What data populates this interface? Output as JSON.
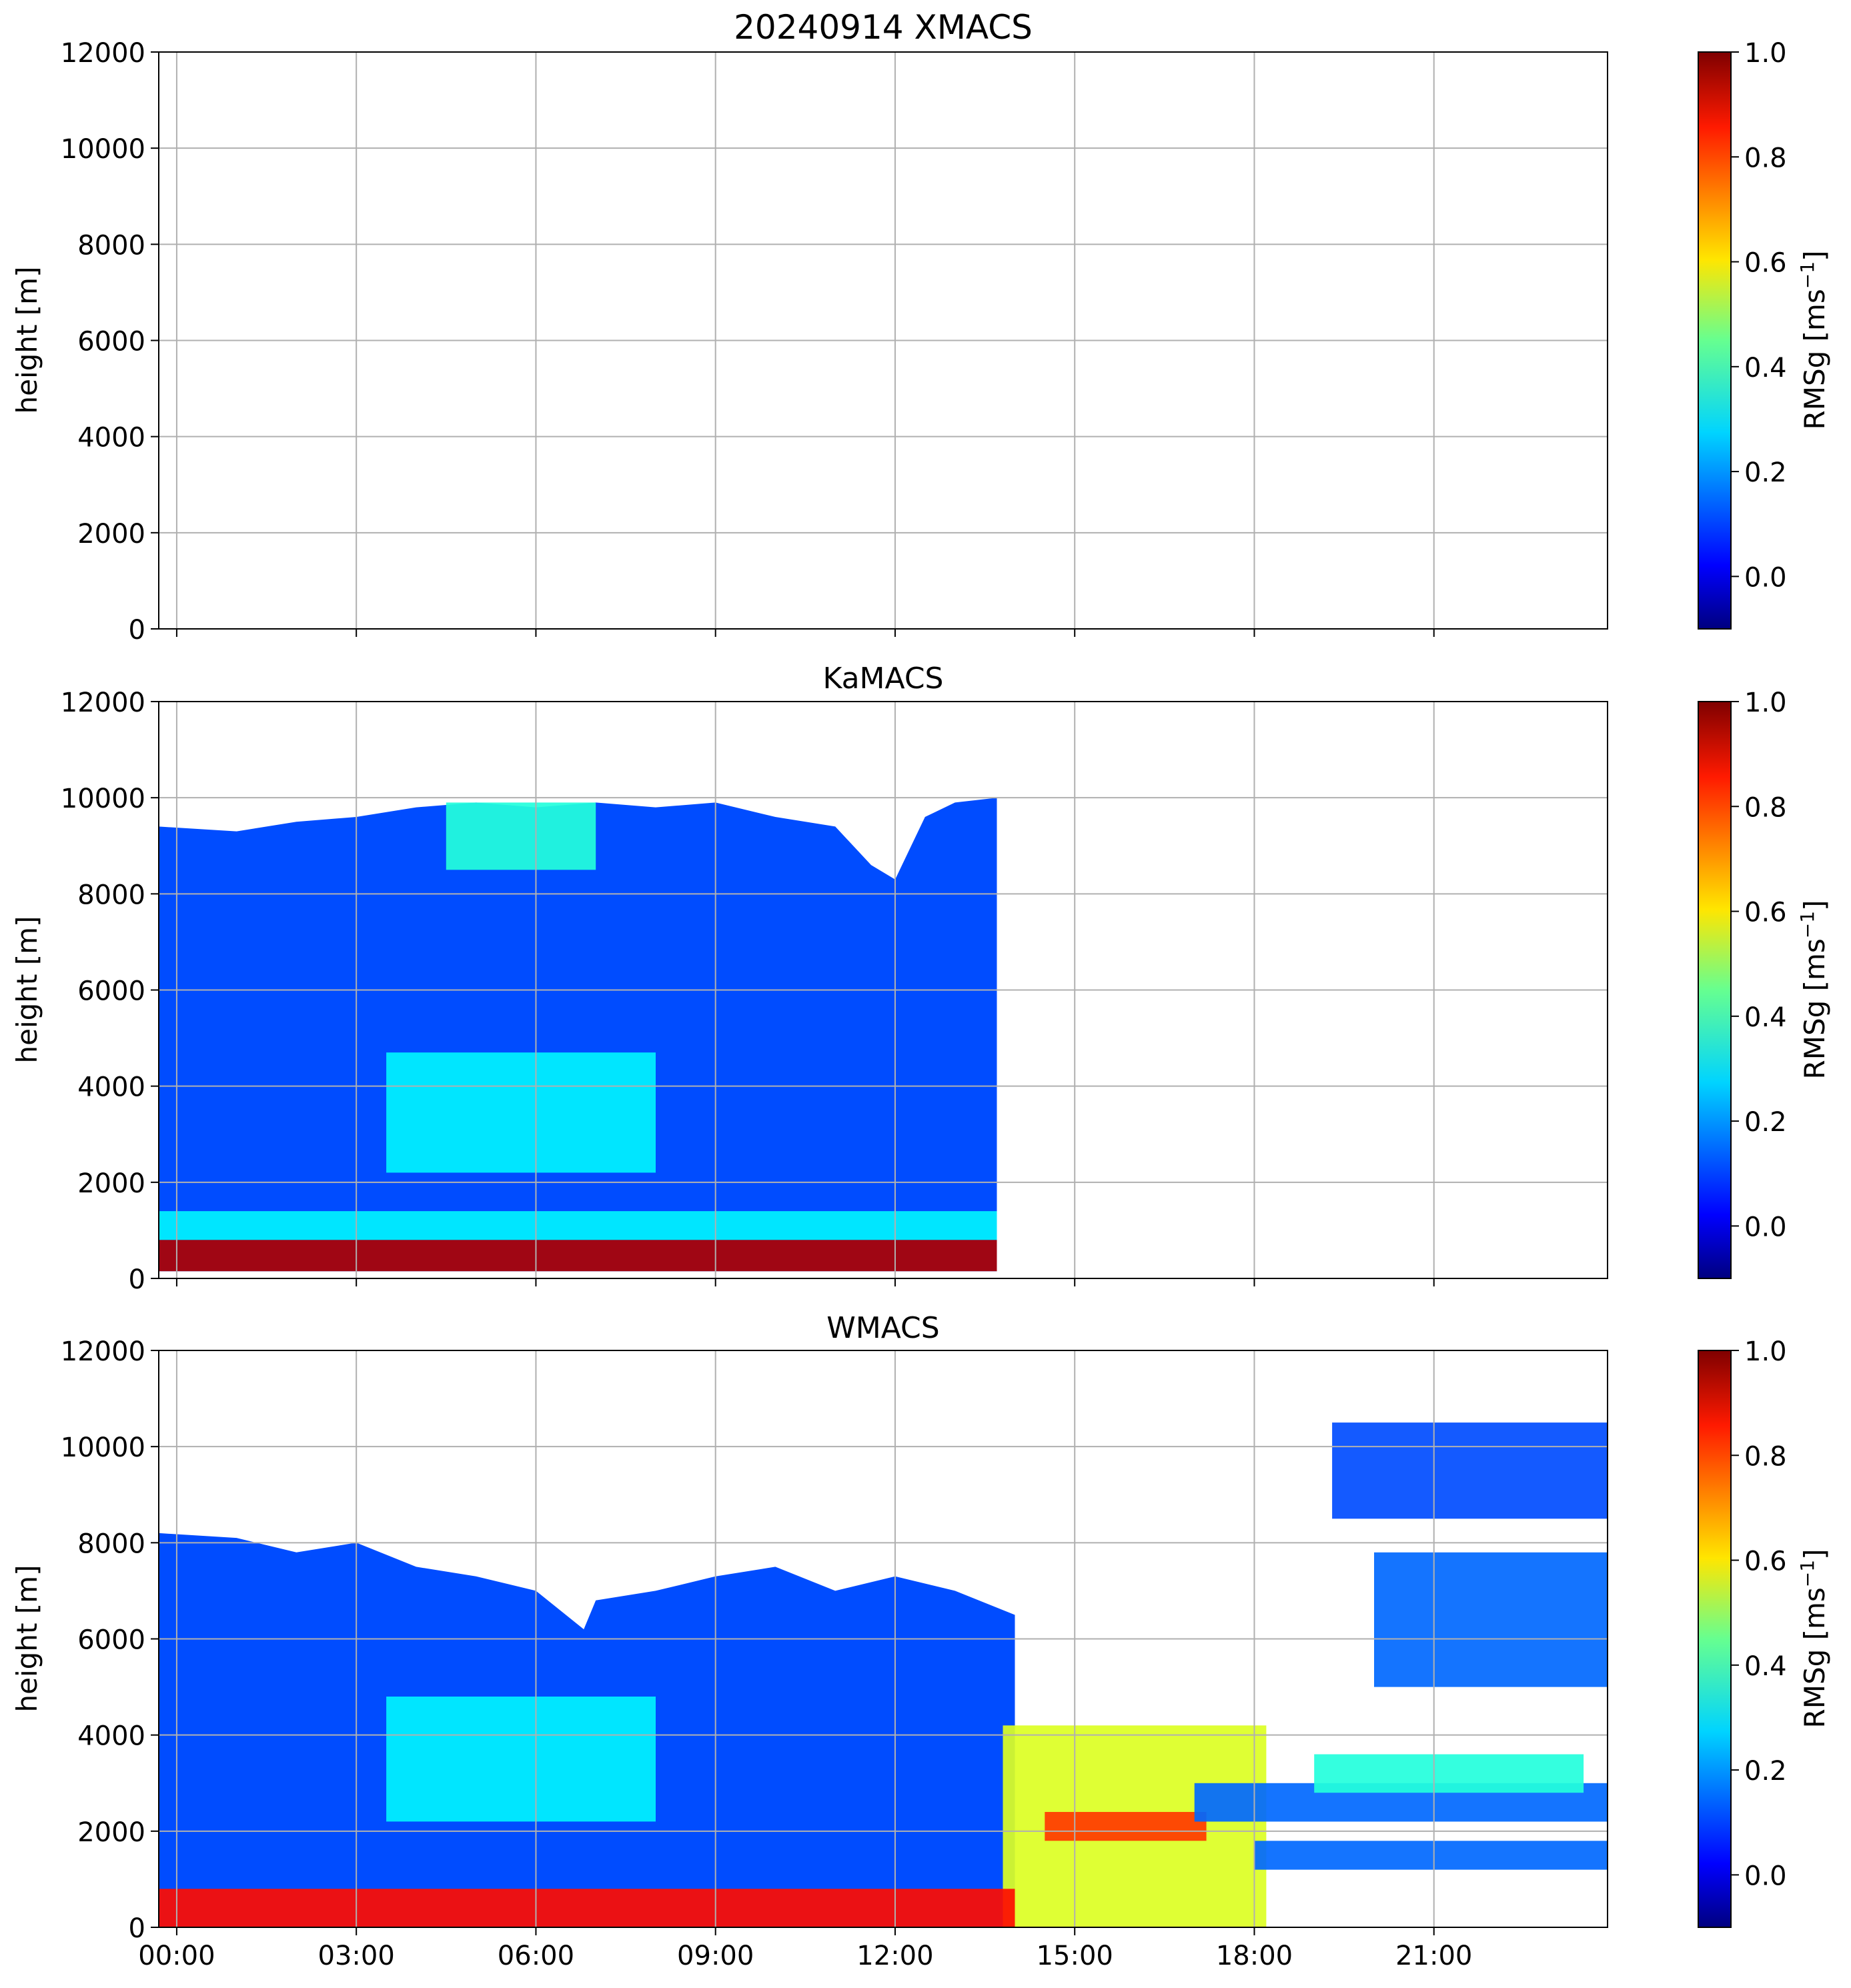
{
  "figure": {
    "suptitle": "20240914 XMACS"
  },
  "chart_data": [
    {
      "type": "heatmap",
      "title": "",
      "panel_title": "20240914 XMACS",
      "ylabel": "height [m]",
      "xlabel": "",
      "x_range_hours": [
        -0.3,
        23.9
      ],
      "ylim": [
        0,
        12000
      ],
      "y_ticks": [
        0,
        2000,
        4000,
        6000,
        8000,
        10000,
        12000
      ],
      "x_ticks_hours": [
        0,
        3,
        6,
        9,
        12,
        15,
        18,
        21
      ],
      "x_tick_labels": [],
      "grid": true,
      "colorbar": {
        "label": "RMSg [ms",
        "label_sup": "−1",
        "label_end": "]",
        "range": [
          -0.1,
          1.0
        ],
        "ticks": [
          "0.0",
          "0.2",
          "0.4",
          "0.6",
          "0.8",
          "1.0"
        ],
        "cmap": "jet"
      },
      "data_present": false,
      "regions": []
    },
    {
      "type": "heatmap",
      "panel_title": "KaMACS",
      "ylabel": "height [m]",
      "xlabel": "",
      "x_range_hours": [
        -0.3,
        23.9
      ],
      "ylim": [
        0,
        12000
      ],
      "y_ticks": [
        0,
        2000,
        4000,
        6000,
        8000,
        10000,
        12000
      ],
      "x_ticks_hours": [
        0,
        3,
        6,
        9,
        12,
        15,
        18,
        21
      ],
      "x_tick_labels": [],
      "grid": true,
      "colorbar": {
        "label": "RMSg [ms",
        "label_sup": "−1",
        "label_end": "]",
        "range": [
          -0.1,
          1.0
        ],
        "ticks": [
          "0.0",
          "0.2",
          "0.4",
          "0.6",
          "0.8",
          "1.0"
        ],
        "cmap": "jet"
      },
      "data_present": true,
      "regions": [
        {
          "name": "cloud layer",
          "t_start": -0.3,
          "t_end": 13.7,
          "h_bottom": 150,
          "h_top_profile": [
            [
              -0.3,
              9400
            ],
            [
              1,
              9300
            ],
            [
              2,
              9500
            ],
            [
              3,
              9600
            ],
            [
              4,
              9800
            ],
            [
              5,
              9900
            ],
            [
              6,
              9800
            ],
            [
              7,
              9900
            ],
            [
              8,
              9800
            ],
            [
              9,
              9900
            ],
            [
              10,
              9600
            ],
            [
              11,
              9400
            ],
            [
              11.6,
              8600
            ],
            [
              12,
              8300
            ],
            [
              12.5,
              9600
            ],
            [
              13,
              9900
            ],
            [
              13.7,
              10000
            ]
          ],
          "value": 0.12
        },
        {
          "name": "mid-level enhancement",
          "t_start": 3.5,
          "t_end": 8.0,
          "h_bottom": 2200,
          "h_top": 4700,
          "value": 0.3
        },
        {
          "name": "upper enhancement",
          "t_start": 4.5,
          "t_end": 7.0,
          "h_bottom": 8500,
          "h_top": 9900,
          "value": 0.35
        },
        {
          "name": "near-surface layer",
          "t_start": -0.3,
          "t_end": 13.7,
          "h_bottom": 800,
          "h_top": 1400,
          "value": 0.3
        },
        {
          "name": "surface clutter",
          "t_start": -0.3,
          "t_end": 13.7,
          "h_bottom": 150,
          "h_top": 800,
          "value": 0.95
        }
      ]
    },
    {
      "type": "heatmap",
      "panel_title": "WMACS",
      "ylabel": "height [m]",
      "xlabel": "",
      "x_range_hours": [
        -0.3,
        23.9
      ],
      "ylim": [
        0,
        12000
      ],
      "y_ticks": [
        0,
        2000,
        4000,
        6000,
        8000,
        10000,
        12000
      ],
      "x_ticks_hours": [
        0,
        3,
        6,
        9,
        12,
        15,
        18,
        21
      ],
      "x_tick_labels": [
        "00:00",
        "03:00",
        "06:00",
        "09:00",
        "12:00",
        "15:00",
        "18:00",
        "21:00"
      ],
      "grid": true,
      "colorbar": {
        "label": "RMSg [ms",
        "label_sup": "−1",
        "label_end": "]",
        "range": [
          -0.1,
          1.0
        ],
        "ticks": [
          "0.0",
          "0.2",
          "0.4",
          "0.6",
          "0.8",
          "1.0"
        ],
        "cmap": "jet"
      },
      "data_present": true,
      "regions": [
        {
          "name": "cloud layer",
          "t_start": -0.3,
          "t_end": 14.0,
          "h_bottom": 0,
          "h_top_profile": [
            [
              -0.3,
              8200
            ],
            [
              1,
              8100
            ],
            [
              2,
              7800
            ],
            [
              3,
              8000
            ],
            [
              4,
              7500
            ],
            [
              5,
              7300
            ],
            [
              6,
              7000
            ],
            [
              6.8,
              6200
            ],
            [
              7,
              6800
            ],
            [
              8,
              7000
            ],
            [
              9,
              7300
            ],
            [
              10,
              7500
            ],
            [
              11,
              7000
            ],
            [
              12,
              7300
            ],
            [
              13,
              7000
            ],
            [
              14,
              6500
            ]
          ],
          "value": 0.12
        },
        {
          "name": "mid-level enhancement",
          "t_start": 3.5,
          "t_end": 8.0,
          "h_bottom": 2200,
          "h_top": 4800,
          "value": 0.3
        },
        {
          "name": "convective column",
          "t_start": 13.8,
          "t_end": 18.2,
          "h_bottom": 0,
          "h_top": 4200,
          "value": 0.55
        },
        {
          "name": "convective core",
          "t_start": 14.5,
          "t_end": 17.2,
          "h_bottom": 1800,
          "h_top": 2400,
          "value": 0.8
        },
        {
          "name": "low layer",
          "t_start": 17.0,
          "t_end": 23.9,
          "h_bottom": 2200,
          "h_top": 3000,
          "value": 0.15
        },
        {
          "name": "low cloud band",
          "t_start": 19.0,
          "t_end": 23.5,
          "h_bottom": 2800,
          "h_top": 3600,
          "value": 0.35
        },
        {
          "name": "shallow layer",
          "t_start": 18.0,
          "t_end": 23.9,
          "h_bottom": 1200,
          "h_top": 1800,
          "value": 0.15
        },
        {
          "name": "upper cloud",
          "t_start": 20.0,
          "t_end": 23.9,
          "h_bottom": 5000,
          "h_top": 7800,
          "value": 0.15
        },
        {
          "name": "high cloud",
          "t_start": 19.3,
          "t_end": 23.9,
          "h_bottom": 8500,
          "h_top": 10500,
          "value": 0.12
        },
        {
          "name": "surface clutter",
          "t_start": -0.3,
          "t_end": 14.0,
          "h_bottom": 0,
          "h_top": 800,
          "value": 0.85
        }
      ]
    }
  ]
}
